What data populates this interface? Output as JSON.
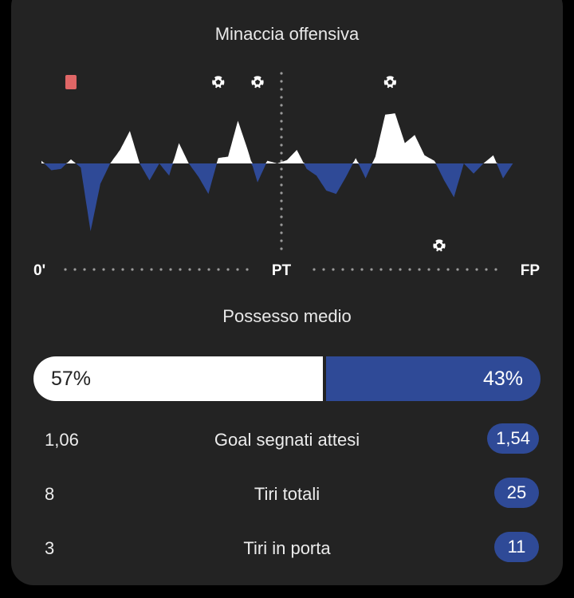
{
  "momentum": {
    "title": "Minaccia offensiva",
    "start_label": "0'",
    "half_label": "PT",
    "end_label": "FP"
  },
  "possession": {
    "title": "Possesso medio",
    "home_pct": 57,
    "away_pct": 43,
    "home_label": "57%",
    "away_label": "43%"
  },
  "stats": [
    {
      "home": "1,06",
      "label": "Goal segnati attesi",
      "away": "1,54"
    },
    {
      "home": "8",
      "label": "Tiri totali",
      "away": "25"
    },
    {
      "home": "3",
      "label": "Tiri in porta",
      "away": "11"
    }
  ],
  "colors": {
    "home": "#ffffff",
    "away": "#2f4a97",
    "red_card": "#e06666",
    "background": "#232323"
  },
  "chart_data": {
    "type": "area",
    "title": "Minaccia offensiva",
    "x_ticks": [
      "0'",
      "PT",
      "FP"
    ],
    "ylim": [
      -100,
      100
    ],
    "grid": false,
    "x": [
      0,
      2,
      4,
      6,
      8,
      10,
      12,
      14,
      16,
      18,
      20,
      22,
      24,
      26,
      28,
      30,
      32,
      34,
      36,
      38,
      40,
      42,
      44,
      46,
      48,
      50,
      52,
      54,
      56,
      58,
      60,
      62,
      64,
      66,
      68,
      70,
      72,
      74,
      76,
      78,
      80,
      82,
      84,
      86,
      88,
      90,
      92,
      94,
      96,
      98,
      100
    ],
    "values": [
      4,
      -10,
      -8,
      6,
      -6,
      -100,
      -30,
      0,
      20,
      48,
      0,
      -25,
      0,
      -18,
      30,
      0,
      -20,
      -45,
      8,
      10,
      63,
      20,
      -28,
      4,
      0,
      5,
      20,
      -8,
      -18,
      -40,
      -45,
      -20,
      8,
      -22,
      10,
      72,
      74,
      30,
      42,
      12,
      4,
      -25,
      -50,
      0,
      -15,
      0,
      12,
      -22,
      0,
      0,
      0
    ],
    "events": [
      {
        "type": "red-card",
        "minute": 6,
        "team": "home"
      },
      {
        "type": "goal",
        "minute": 36,
        "team": "home"
      },
      {
        "type": "goal",
        "minute": 44,
        "team": "home"
      },
      {
        "type": "goal",
        "minute": 71,
        "team": "home"
      },
      {
        "type": "goal",
        "minute": 81,
        "team": "away"
      }
    ]
  }
}
